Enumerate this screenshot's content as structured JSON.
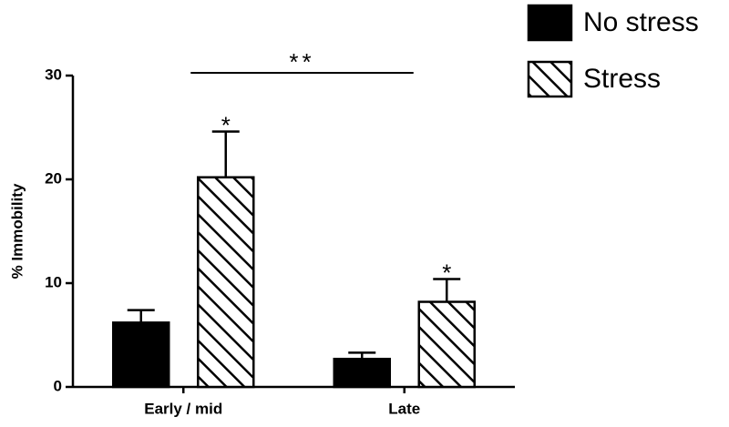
{
  "chart_data": {
    "type": "bar",
    "y_label": "% Immobility",
    "categories": [
      "Early / mid",
      "Late"
    ],
    "series": [
      {
        "name": "No stress",
        "color": "#000000",
        "pattern": "solid",
        "values": [
          6.2,
          2.7
        ],
        "errors": [
          1.2,
          0.6
        ]
      },
      {
        "name": "Stress",
        "color": "#000000",
        "pattern": "hatch",
        "values": [
          20.2,
          8.2
        ],
        "errors": [
          4.4,
          2.2
        ]
      }
    ],
    "annotations": [
      "*",
      "*",
      "**"
    ],
    "ylim": [
      0,
      30
    ],
    "yticks": [
      0,
      10,
      20,
      30
    ],
    "grid": false
  }
}
